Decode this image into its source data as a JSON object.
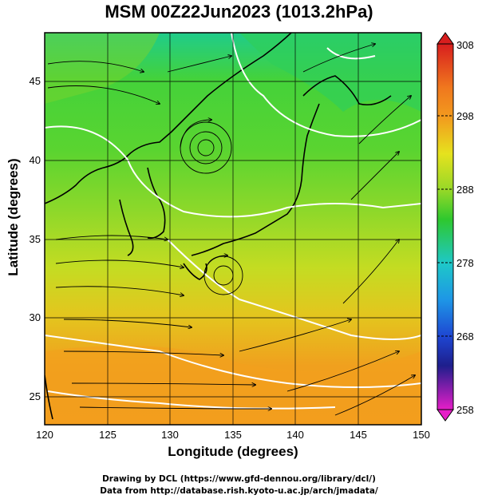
{
  "title": "MSM 00Z22Jun2023 (1013.2hPa)",
  "xlabel": "Longitude (degrees)",
  "ylabel": "Latitude  (degrees)",
  "credit_line1": "Drawing by DCL (https://www.gfd-dennou.org/library/dcl/)",
  "credit_line2": "Data from http://database.rish.kyoto-u.ac.jp/arch/jmadata/",
  "x_ticks": [
    "120",
    "125",
    "130",
    "135",
    "140",
    "145",
    "150"
  ],
  "y_ticks": [
    "45",
    "40",
    "35",
    "30",
    "25"
  ],
  "colorbar": {
    "labels": [
      "308",
      "298",
      "288",
      "278",
      "268",
      "258"
    ],
    "range": [
      258,
      308
    ],
    "colors": {
      "top": "#d81e1e",
      "orange": "#f29a1e",
      "yellow": "#e6e21e",
      "green": "#2ec82e",
      "cyan": "#1ec8c8",
      "blue": "#1e46d2",
      "navy": "#1e1e8c",
      "magenta": "#e61ec8"
    }
  },
  "map": {
    "lon_range": [
      120,
      150
    ],
    "lat_range": [
      22.5,
      47.8
    ],
    "variable": "temperature (K) with streamlines"
  }
}
